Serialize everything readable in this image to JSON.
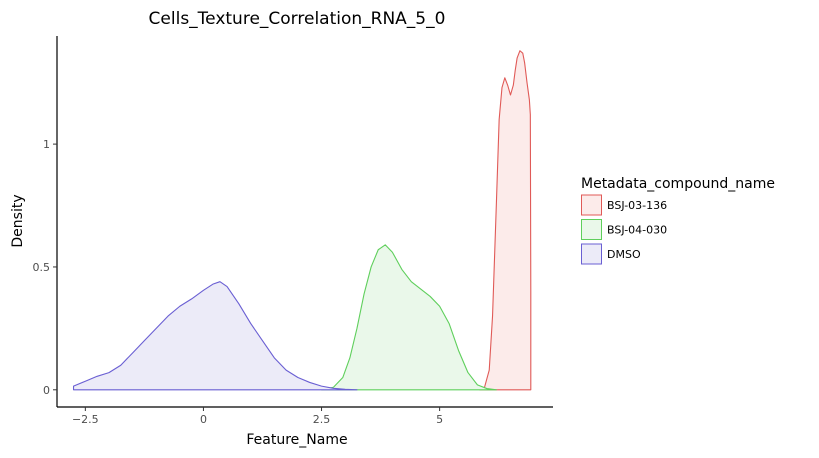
{
  "chart_data": {
    "type": "area",
    "title": "Cells_Texture_Correlation_RNA_5_0",
    "xlabel": "Feature_Name",
    "ylabel": "Density",
    "xlim": [
      -3.1,
      7.4
    ],
    "ylim": [
      -0.07,
      1.44
    ],
    "xticks": [
      -2.5,
      0,
      2.5,
      5
    ],
    "xtick_labels": [
      "−2.5",
      "0",
      "2.5",
      "5"
    ],
    "yticks": [
      0,
      0.5,
      1
    ],
    "ytick_labels": [
      "0",
      "0.5",
      "1"
    ],
    "grid": false,
    "legend": {
      "title": "Metadata_compound_name",
      "placement": "right"
    },
    "series": [
      {
        "name": "BSJ-03-136",
        "line_color": "#e05a57",
        "fill_color": "#fcebea",
        "x": [
          5.85,
          5.95,
          6.05,
          6.12,
          6.2,
          6.26,
          6.32,
          6.38,
          6.44,
          6.5,
          6.56,
          6.6,
          6.64,
          6.7,
          6.76,
          6.8,
          6.85,
          6.9,
          6.92,
          6.93,
          6.93
        ],
        "y": [
          0,
          0.01,
          0.08,
          0.3,
          0.75,
          1.1,
          1.23,
          1.27,
          1.24,
          1.2,
          1.24,
          1.3,
          1.35,
          1.38,
          1.37,
          1.33,
          1.25,
          1.18,
          1.12,
          0.4,
          0
        ]
      },
      {
        "name": "BSJ-04-030",
        "line_color": "#5fcf5c",
        "fill_color": "#eaf8ea",
        "x": [
          2.5,
          2.75,
          2.95,
          3.1,
          3.25,
          3.4,
          3.55,
          3.7,
          3.85,
          4.0,
          4.2,
          4.4,
          4.6,
          4.8,
          5.0,
          5.2,
          5.4,
          5.6,
          5.8,
          6.0,
          6.2
        ],
        "y": [
          0,
          0.01,
          0.05,
          0.13,
          0.25,
          0.39,
          0.5,
          0.57,
          0.59,
          0.56,
          0.49,
          0.44,
          0.41,
          0.38,
          0.34,
          0.27,
          0.16,
          0.07,
          0.02,
          0.005,
          0
        ]
      },
      {
        "name": "DMSO",
        "line_color": "#6a5fd3",
        "fill_color": "#ecebf8",
        "x": [
          -2.75,
          -2.5,
          -2.25,
          -2.0,
          -1.75,
          -1.5,
          -1.25,
          -1.0,
          -0.75,
          -0.5,
          -0.25,
          0.0,
          0.2,
          0.35,
          0.5,
          0.75,
          1.0,
          1.25,
          1.5,
          1.75,
          2.0,
          2.25,
          2.5,
          2.75,
          3.0,
          3.25
        ],
        "y": [
          0.015,
          0.035,
          0.055,
          0.07,
          0.1,
          0.15,
          0.2,
          0.25,
          0.3,
          0.34,
          0.37,
          0.405,
          0.43,
          0.44,
          0.42,
          0.35,
          0.27,
          0.2,
          0.13,
          0.08,
          0.05,
          0.03,
          0.015,
          0.006,
          0.002,
          0
        ]
      }
    ]
  }
}
